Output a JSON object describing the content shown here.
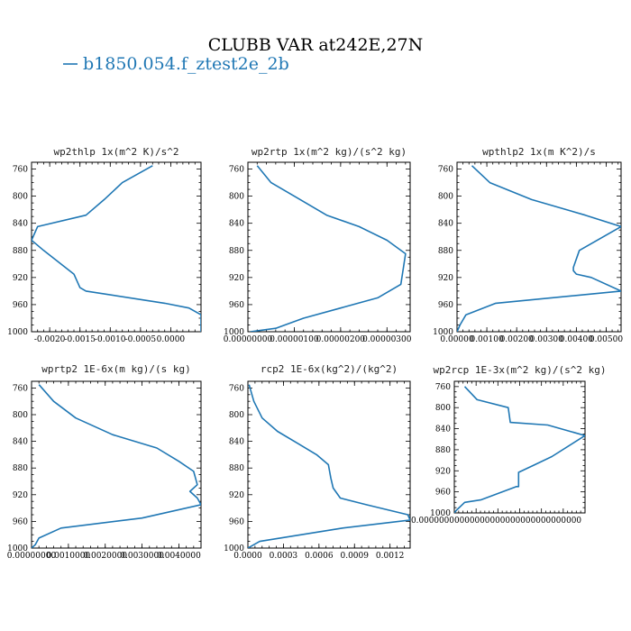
{
  "figure": {
    "title": "CLUBB VAR at242E,27N",
    "legend": {
      "label": "b1850.054.f_ztest2e_2b",
      "color": "#1f77b4"
    }
  },
  "chart_data": [
    {
      "type": "line",
      "title": "wp2thlp  1x(m^2 K)/s^2",
      "xlim": [
        -0.0023,
        0.0005
      ],
      "ylim": [
        1000,
        750
      ],
      "ytick_labels": [
        "760",
        "800",
        "840",
        "880",
        "920",
        "960",
        "1000"
      ],
      "xtick_labels": [
        "-0.0020",
        "-0.0015",
        "-0.0010",
        "-0.0005",
        "0.0000"
      ],
      "series": [
        {
          "x": [
            -0.0003,
            -0.0008,
            -0.0011,
            -0.0014,
            -0.0022,
            -0.0023,
            -0.0021,
            -0.0016,
            -0.0015,
            -0.0014,
            -0.0001,
            0.0003,
            0.0005,
            0.0005
          ],
          "y": [
            755,
            780,
            805,
            828,
            845,
            865,
            880,
            915,
            935,
            940,
            958,
            965,
            975,
            1000
          ]
        }
      ]
    },
    {
      "type": "line",
      "title": "wp2rtp  1x(m^2 kg)/(s^2 kg)",
      "xlim": [
        0,
        3.5e-06
      ],
      "ylim": [
        1000,
        750
      ],
      "ytick_labels": [
        "760",
        "800",
        "840",
        "880",
        "920",
        "960",
        "1000"
      ],
      "xtick_labels": [
        "0.00000000",
        "0.00000100",
        "0.00000200",
        "0.00000300"
      ],
      "series": [
        {
          "x": [
            2e-07,
            5e-07,
            1e-06,
            1.7e-06,
            2.4e-06,
            3e-06,
            3.4e-06,
            3.3e-06,
            2.8e-06,
            2e-06,
            1.2e-06,
            8e-07,
            6e-07,
            5e-08
          ],
          "y": [
            755,
            780,
            800,
            828,
            845,
            865,
            885,
            930,
            950,
            965,
            980,
            990,
            995,
            1000
          ]
        }
      ]
    },
    {
      "type": "line",
      "title": "wpthlp2  1x(m K^2)/s",
      "xlim": [
        0,
        0.0055
      ],
      "ylim": [
        1000,
        750
      ],
      "ytick_labels": [
        "760",
        "800",
        "840",
        "880",
        "920",
        "960",
        "1000"
      ],
      "xtick_labels": [
        "0.00000",
        "0.00100",
        "0.00200",
        "0.00300",
        "0.00400",
        "0.00500"
      ],
      "series": [
        {
          "x": [
            0.0005,
            0.0011,
            0.0025,
            0.0043,
            0.0055,
            0.0041,
            0.0039,
            0.0039,
            0.004,
            0.0045,
            0.0055,
            0.0013,
            0.0003,
            0.0001,
            0.0
          ],
          "y": [
            755,
            780,
            805,
            828,
            845,
            880,
            905,
            910,
            915,
            920,
            940,
            958,
            975,
            990,
            1000
          ]
        }
      ]
    },
    {
      "type": "line",
      "title": "wprtp2  1E-6x(m kg)/(s kg)",
      "xlim": [
        0,
        0.0046
      ],
      "ylim": [
        1000,
        750
      ],
      "ytick_labels": [
        "760",
        "800",
        "840",
        "880",
        "920",
        "960",
        "1000"
      ],
      "xtick_labels": [
        "0.00000000",
        "0.0010000",
        "0.0020000",
        "0.0030000",
        "0.0040000"
      ],
      "series": [
        {
          "x": [
            0.0002,
            0.0006,
            0.0012,
            0.0022,
            0.0034,
            0.004,
            0.0044,
            0.0045,
            0.0043,
            0.0045,
            0.0046,
            0.003,
            0.0008,
            0.0002,
            0.0001,
            0.0
          ],
          "y": [
            755,
            780,
            805,
            830,
            850,
            870,
            885,
            905,
            915,
            925,
            935,
            955,
            970,
            985,
            995,
            1000
          ]
        }
      ]
    },
    {
      "type": "line",
      "title": "rcp2  1E-6x(kg^2)/(kg^2)",
      "xlim": [
        0,
        0.00137
      ],
      "ylim": [
        1000,
        750
      ],
      "ytick_labels": [
        "760",
        "800",
        "840",
        "880",
        "920",
        "960",
        "1000"
      ],
      "xtick_labels": [
        "0.0000",
        "0.0003",
        "0.0006",
        "0.0009",
        "0.0012"
      ],
      "series": [
        {
          "x": [
            1e-05,
            5e-05,
            0.00012,
            0.00025,
            0.00042,
            0.00058,
            0.00068,
            0.0007,
            0.00072,
            0.00078,
            0.001,
            0.00135,
            0.00137,
            0.0008,
            0.0001,
            0.0
          ],
          "y": [
            755,
            780,
            805,
            825,
            843,
            860,
            875,
            895,
            910,
            925,
            935,
            950,
            958,
            970,
            990,
            1000
          ]
        }
      ]
    },
    {
      "type": "line",
      "title": "wp2rcp  1E-3x(m^2 kg)/(s^2 kg)",
      "xlim": [
        0,
        6.3e-06
      ],
      "ylim": [
        1000,
        750
      ],
      "ytick_labels": [
        "760",
        "800",
        "840",
        "880",
        "920",
        "960",
        "1000"
      ],
      "xtick_labels": [
        "0.00000000000000000000000000000000"
      ],
      "series": [
        {
          "x": [
            5e-07,
            1.1e-06,
            2.6e-06,
            2.7e-06,
            4.5e-06,
            6.3e-06,
            4.7e-06,
            3.8e-06,
            3.1e-06,
            3.1e-06,
            3e-06,
            1.3e-06,
            5e-07,
            1e-07,
            0.0
          ],
          "y": [
            760,
            785,
            800,
            828,
            833,
            853,
            893,
            910,
            923,
            950,
            950,
            975,
            980,
            995,
            1000
          ]
        }
      ]
    }
  ]
}
